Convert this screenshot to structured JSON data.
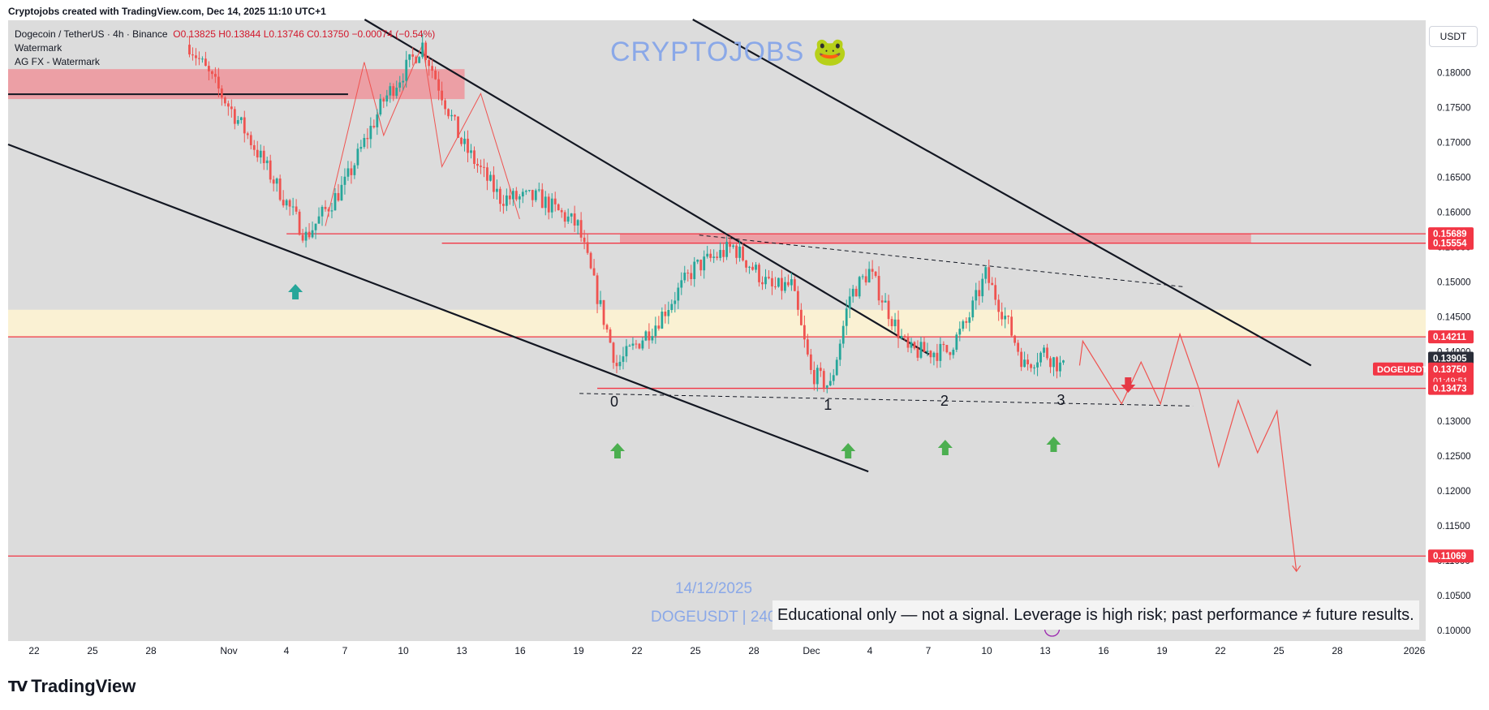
{
  "header": {
    "credit": "Cryptojobs created with TradingView.com, Dec 14, 2025 11:10 UTC+1"
  },
  "legend": {
    "symbol_line": "Dogecoin / TetherUS · 4h · Binance",
    "open": "O0.13825",
    "high": "H0.13844",
    "low": "L0.13746",
    "close": "C0.13750",
    "change": "−0.00074 (−0.54%)",
    "indicator_1": "Watermark",
    "indicator_2": "AG FX - Watermark"
  },
  "watermarks": {
    "brand": "CRYPTOJOBS",
    "date": "14/12/2025",
    "symbol": "DOGEUSDT | 240"
  },
  "disclaimer": "Educational only — not a signal. Leverage is high risk; past performance ≠ future results.",
  "currency_button": "USDT",
  "footer": {
    "brand": "TradingView"
  },
  "colors": {
    "background": "#dcdcdc",
    "bull": "#26a69a",
    "bear": "#ef5350",
    "level_line": "#f23645",
    "zone_red": "#f28b93",
    "zone_beige": "#fdf3d2",
    "arrow_up": "#4caf50",
    "arrow_down": "#e53945",
    "watermark": "#8aa8e8"
  },
  "chart_data": {
    "type": "candlestick",
    "symbol": "DOGEUSDT",
    "timeframe": "4h",
    "exchange": "Binance",
    "ylim": [
      0.0985,
      0.1875
    ],
    "y_ticks": [
      "0.18000",
      "0.17500",
      "0.17000",
      "0.16500",
      "0.16000",
      "0.15500",
      "0.15000",
      "0.14500",
      "0.14000",
      "0.13500",
      "0.13000",
      "0.12500",
      "0.12000",
      "0.11500",
      "0.11000",
      "0.10500",
      "0.10000"
    ],
    "x_ticks": [
      "22",
      "25",
      "28",
      "Nov",
      "4",
      "7",
      "10",
      "13",
      "16",
      "19",
      "22",
      "25",
      "28",
      "Dec",
      "4",
      "7",
      "10",
      "13",
      "16",
      "19",
      "22",
      "25",
      "28",
      "2026"
    ],
    "price_labels": [
      {
        "value": 0.15689,
        "text": "0.15689",
        "style": "red"
      },
      {
        "value": 0.15554,
        "text": "0.15554",
        "style": "red"
      },
      {
        "value": 0.14211,
        "text": "0.14211",
        "style": "red"
      },
      {
        "value": 0.13905,
        "text": "0.13905",
        "style": "dark"
      },
      {
        "value": 0.1375,
        "text": "0.13750",
        "style": "red",
        "extra": "01:49:51"
      },
      {
        "value": 0.13473,
        "text": "0.13473",
        "style": "red"
      },
      {
        "value": 0.11069,
        "text": "0.11069",
        "style": "red"
      }
    ],
    "symbol_tag": "DOGEUSDT",
    "horizontal_levels": [
      0.1769,
      0.15689,
      0.15554,
      0.14211,
      0.13473,
      0.11069
    ],
    "zones": [
      {
        "name": "supply-zone-left",
        "from": 0.1762,
        "to": 0.1805
      },
      {
        "name": "resistance-zone",
        "from": 0.15554,
        "to": 0.15689
      },
      {
        "name": "support-band",
        "from": 0.14211,
        "to": 0.146
      }
    ],
    "wave_labels": [
      "0",
      "1",
      "2",
      "3"
    ],
    "close_path_anchors": [
      [
        "2025-10-30",
        0.184
      ],
      [
        "2025-11-02",
        0.171
      ],
      [
        "2025-11-05",
        0.1565
      ],
      [
        "2025-11-07",
        0.164
      ],
      [
        "2025-11-09",
        0.176
      ],
      [
        "2025-11-11",
        0.184
      ],
      [
        "2025-11-13",
        0.17
      ],
      [
        "2025-11-15",
        0.162
      ],
      [
        "2025-11-17",
        0.162
      ],
      [
        "2025-11-19",
        0.158
      ],
      [
        "2025-11-21",
        0.138
      ],
      [
        "2025-11-23",
        0.144
      ],
      [
        "2025-11-25",
        0.152
      ],
      [
        "2025-11-27",
        0.155
      ],
      [
        "2025-11-29",
        0.149
      ],
      [
        "2025-11-30",
        0.1495
      ],
      [
        "2025-12-01",
        0.137
      ],
      [
        "2025-12-02",
        0.135
      ],
      [
        "2025-12-03",
        0.148
      ],
      [
        "2025-12-04",
        0.1515
      ],
      [
        "2025-12-06",
        0.14
      ],
      [
        "2025-12-08",
        0.14
      ],
      [
        "2025-12-09",
        0.144
      ],
      [
        "2025-12-10",
        0.151
      ],
      [
        "2025-12-11",
        0.145
      ],
      [
        "2025-12-12",
        0.138
      ],
      [
        "2025-12-13",
        0.14
      ],
      [
        "2025-12-14",
        0.1375
      ]
    ],
    "projection_path": [
      [
        "2025-12-15",
        0.1415
      ],
      [
        "2025-12-17",
        0.1325
      ],
      [
        "2025-12-18",
        0.1385
      ],
      [
        "2025-12-19",
        0.1325
      ],
      [
        "2025-12-20",
        0.1425
      ],
      [
        "2025-12-21",
        0.1345
      ],
      [
        "2025-12-22",
        0.1235
      ],
      [
        "2025-12-23",
        0.133
      ],
      [
        "2025-12-24",
        0.1255
      ],
      [
        "2025-12-25",
        0.1315
      ],
      [
        "2025-12-26",
        0.1085
      ]
    ]
  }
}
